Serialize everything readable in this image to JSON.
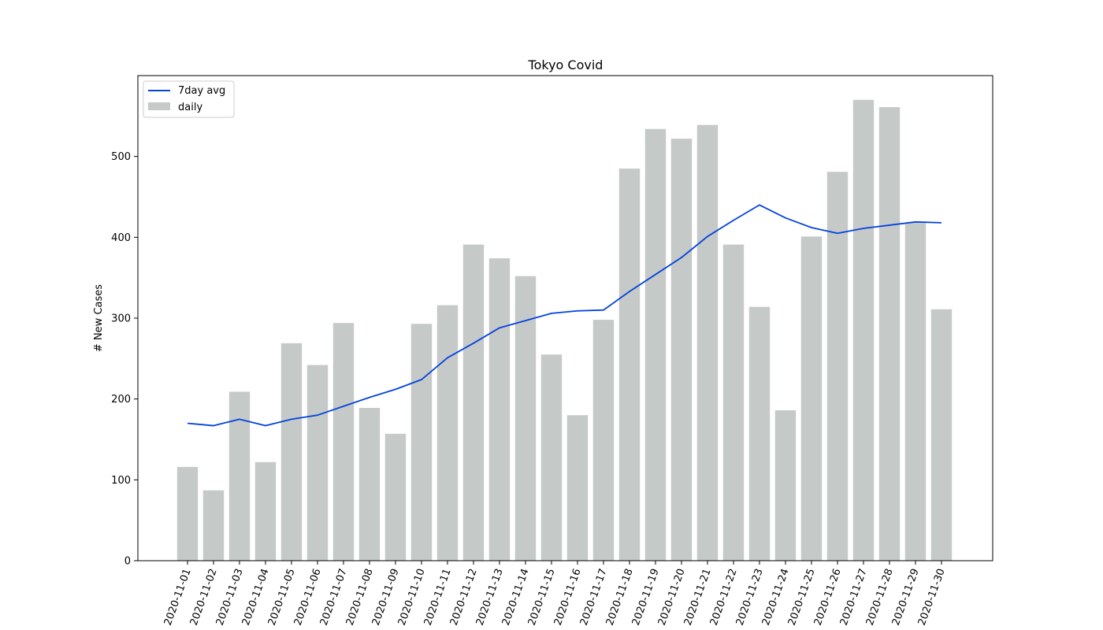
{
  "chart_data": {
    "type": "bar",
    "title": "Tokyo Covid",
    "xlabel": "",
    "ylabel": "# New Cases",
    "ylim": [
      0,
      600
    ],
    "yticks": [
      0,
      100,
      200,
      300,
      400,
      500
    ],
    "grid": false,
    "legend_position": "upper-left",
    "categories": [
      "2020-11-01",
      "2020-11-02",
      "2020-11-03",
      "2020-11-04",
      "2020-11-05",
      "2020-11-06",
      "2020-11-07",
      "2020-11-08",
      "2020-11-09",
      "2020-11-10",
      "2020-11-11",
      "2020-11-12",
      "2020-11-13",
      "2020-11-14",
      "2020-11-15",
      "2020-11-16",
      "2020-11-17",
      "2020-11-18",
      "2020-11-19",
      "2020-11-20",
      "2020-11-21",
      "2020-11-22",
      "2020-11-23",
      "2020-11-24",
      "2020-11-25",
      "2020-11-26",
      "2020-11-27",
      "2020-11-28",
      "2020-11-29",
      "2020-11-30"
    ],
    "series": [
      {
        "name": "daily",
        "kind": "bar",
        "color": "#c5c9c7",
        "values": [
          116,
          87,
          209,
          122,
          269,
          242,
          294,
          189,
          157,
          293,
          316,
          391,
          374,
          352,
          255,
          180,
          298,
          485,
          534,
          522,
          539,
          391,
          314,
          186,
          401,
          481,
          570,
          561,
          418,
          311
        ]
      },
      {
        "name": "7day avg",
        "kind": "line",
        "color": "#0343df",
        "values": [
          170,
          167,
          175,
          167,
          175,
          180,
          191,
          202,
          212,
          224,
          251,
          269,
          288,
          297,
          306,
          309,
          310,
          333,
          354,
          375,
          401,
          421,
          440,
          424,
          412,
          405,
          411,
          415,
          419,
          418
        ]
      }
    ]
  }
}
